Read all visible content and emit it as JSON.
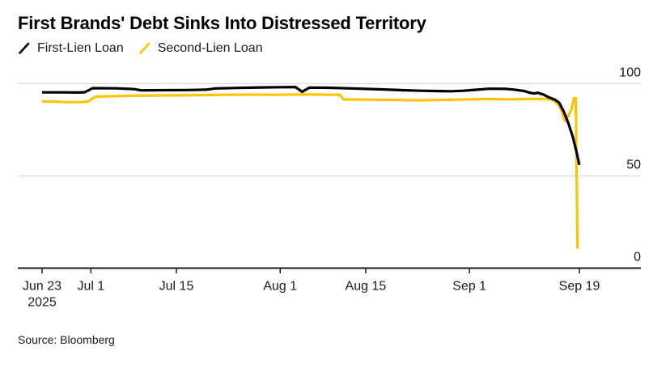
{
  "title": "First Brands' Debt Sinks Into Distressed Territory",
  "legend": [
    {
      "label": "First-Lien Loan",
      "color": "#000000"
    },
    {
      "label": "Second-Lien Loan",
      "color": "#FFC400"
    }
  ],
  "source": "Source: Bloomberg",
  "colors": {
    "background": "#FFFFFF",
    "gridline": "#DADADA",
    "axis": "#1B1B1B",
    "tick_label": "#1B1B1B",
    "first_lien": "#000000",
    "second_lien": "#FFC400"
  },
  "chart_data": {
    "type": "line",
    "title": "First Brands' Debt Sinks Into Distressed Territory",
    "xlabel": "",
    "ylabel": "",
    "x_unit": "days since Jun 23, 2025",
    "ylim": [
      0,
      100
    ],
    "y_ticks": [
      0,
      50,
      100
    ],
    "grid": "horizontal",
    "legend_position": "top-left",
    "x_ticks": [
      {
        "day": 0,
        "label": "Jun 23",
        "sublabel": "2025"
      },
      {
        "day": 8,
        "label": "Jul 1"
      },
      {
        "day": 22,
        "label": "Jul 15"
      },
      {
        "day": 39,
        "label": "Aug 1"
      },
      {
        "day": 53,
        "label": "Aug 15"
      },
      {
        "day": 70,
        "label": "Sep 1"
      },
      {
        "day": 88,
        "label": "Sep 19"
      }
    ],
    "series": [
      {
        "name": "First-Lien Loan",
        "color": "#000000",
        "points": [
          [
            0,
            95.3
          ],
          [
            3,
            95.3
          ],
          [
            6,
            95.2
          ],
          [
            7,
            95.4
          ],
          [
            8.3,
            97.6
          ],
          [
            12,
            97.5
          ],
          [
            15,
            97.1
          ],
          [
            16.2,
            96.4
          ],
          [
            20,
            96.5
          ],
          [
            24,
            96.6
          ],
          [
            27,
            96.8
          ],
          [
            28.3,
            97.4
          ],
          [
            32,
            97.7
          ],
          [
            36,
            98.0
          ],
          [
            39,
            98.1
          ],
          [
            41.5,
            98.2
          ],
          [
            42.6,
            95.6
          ],
          [
            43.8,
            97.9
          ],
          [
            47,
            97.8
          ],
          [
            50,
            97.5
          ],
          [
            53,
            97.2
          ],
          [
            56,
            96.9
          ],
          [
            59,
            96.5
          ],
          [
            62,
            96.2
          ],
          [
            65,
            96.0
          ],
          [
            67,
            95.9
          ],
          [
            69,
            96.2
          ],
          [
            71,
            96.7
          ],
          [
            73.3,
            97.3
          ],
          [
            76,
            97.2
          ],
          [
            77.5,
            96.7
          ],
          [
            79,
            96.0
          ],
          [
            79.9,
            95.1
          ],
          [
            80.6,
            94.7
          ],
          [
            81.2,
            95.1
          ],
          [
            82.2,
            94.0
          ],
          [
            83,
            92.6
          ],
          [
            84,
            91.3
          ],
          [
            84.7,
            89.7
          ],
          [
            85.5,
            84.5
          ],
          [
            86.2,
            78.5
          ],
          [
            86.9,
            71.5
          ],
          [
            87.5,
            63.5
          ],
          [
            88,
            56.0
          ]
        ]
      },
      {
        "name": "Second-Lien Loan",
        "color": "#FFC400",
        "points": [
          [
            0,
            90.4
          ],
          [
            2,
            90.3
          ],
          [
            4,
            90.0
          ],
          [
            6,
            90.0
          ],
          [
            7.5,
            90.2
          ],
          [
            8.7,
            93.0
          ],
          [
            10,
            93.1
          ],
          [
            14,
            93.4
          ],
          [
            18,
            93.6
          ],
          [
            22,
            93.7
          ],
          [
            26,
            93.8
          ],
          [
            30,
            94.0
          ],
          [
            34,
            94.1
          ],
          [
            38,
            94.0
          ],
          [
            41,
            94.1
          ],
          [
            44,
            94.2
          ],
          [
            46,
            94.1
          ],
          [
            48.8,
            94.0
          ],
          [
            49.4,
            91.5
          ],
          [
            52,
            91.4
          ],
          [
            55,
            91.3
          ],
          [
            58,
            91.2
          ],
          [
            61,
            91.0
          ],
          [
            64,
            91.1
          ],
          [
            67,
            91.3
          ],
          [
            70,
            91.5
          ],
          [
            73,
            91.7
          ],
          [
            75,
            91.6
          ],
          [
            77,
            91.5
          ],
          [
            79,
            91.7
          ],
          [
            81,
            91.8
          ],
          [
            82.5,
            91.7
          ],
          [
            83.5,
            91.3
          ],
          [
            84.3,
            89.5
          ],
          [
            85,
            86.0
          ],
          [
            85.6,
            80.0
          ],
          [
            86.2,
            82.5
          ],
          [
            86.7,
            86.0
          ],
          [
            87.1,
            92.1
          ],
          [
            87.4,
            92.3
          ],
          [
            87.7,
            10.5
          ]
        ]
      }
    ]
  }
}
